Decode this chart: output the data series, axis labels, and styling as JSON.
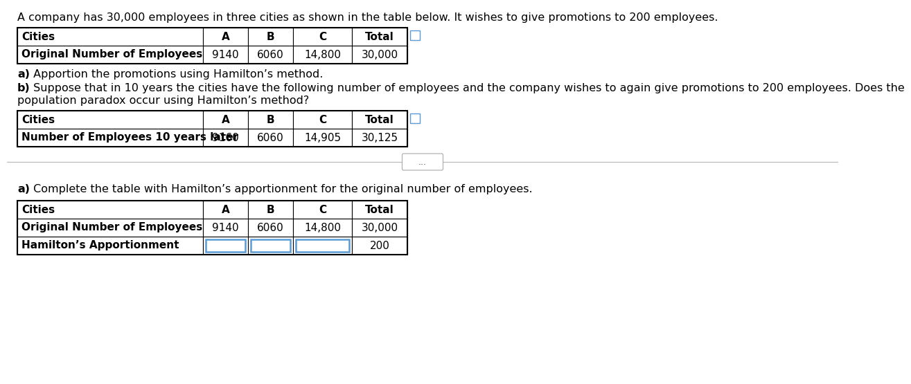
{
  "intro_text": "A company has 30,000 employees in three cities as shown in the table below. It wishes to give promotions to 200 employees.",
  "table1_headers": [
    "Cities",
    "A",
    "B",
    "C",
    "Total"
  ],
  "table1_rows": [
    [
      "Original Number of Employees",
      "9140",
      "6060",
      "14,800",
      "30,000"
    ]
  ],
  "part_a_text_bold": "a)",
  "part_a_text_normal": " Apportion the promotions using Hamilton’s method.",
  "part_b_text_bold": "b)",
  "part_b_text_normal": " Suppose that in 10 years the cities have the following number of employees and the company wishes to again give promotions to 200 employees. Does the",
  "part_b_text_line2": "population paradox occur using Hamilton’s method?",
  "table2_headers": [
    "Cities",
    "A",
    "B",
    "C",
    "Total"
  ],
  "table2_rows": [
    [
      "Number of Employees 10 years later",
      "9160",
      "6060",
      "14,905",
      "30,125"
    ]
  ],
  "divider_text": "...",
  "part_a2_text_bold": "a)",
  "part_a2_text_normal": " Complete the table with Hamilton’s apportionment for the original number of employees.",
  "table3_headers": [
    "Cities",
    "A",
    "B",
    "C",
    "Total"
  ],
  "table3_rows": [
    [
      "Original Number of Employees",
      "9140",
      "6060",
      "14,800",
      "30,000"
    ],
    [
      "Hamilton’s Apportionment",
      "",
      "",
      "",
      "200"
    ]
  ],
  "table3_input_cols": [
    1,
    2,
    3
  ],
  "bg_color": "#ffffff",
  "text_color": "#000000",
  "table_border_color": "#000000",
  "input_box_color": "#5b9bd5",
  "font_size_main": 11.5,
  "font_size_table": 11
}
